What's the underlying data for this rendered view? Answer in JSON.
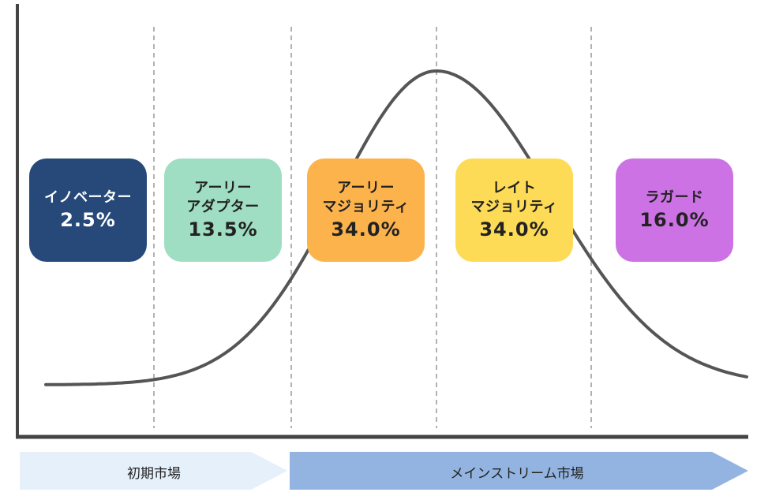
{
  "segments": [
    {
      "name": "イノベーター",
      "percent": "2.5%",
      "share": 2.5,
      "color": "#26497A",
      "text_color": "#FFFFFF"
    },
    {
      "name": "アーリー\nアダプター",
      "percent": "13.5%",
      "share": 13.5,
      "color": "#9FDEC2",
      "text_color": "#222222"
    },
    {
      "name": "アーリー\nマジョリティ",
      "percent": "34.0%",
      "share": 34.0,
      "color": "#FCB34C",
      "text_color": "#222222"
    },
    {
      "name": "レイト\nマジョリティ",
      "percent": "34.0%",
      "share": 34.0,
      "color": "#FDDB56",
      "text_color": "#222222"
    },
    {
      "name": "ラガード",
      "percent": "16.0%",
      "share": 16.0,
      "color": "#CC72E5",
      "text_color": "#222222"
    }
  ],
  "markets": [
    {
      "label": "初期市場",
      "color": "#E5F0FB"
    },
    {
      "label": "メインストリーム市場",
      "color": "#93B4E1"
    }
  ],
  "colors": {
    "curve": "#555555",
    "axis": "#444444",
    "divider": "#999999"
  }
}
